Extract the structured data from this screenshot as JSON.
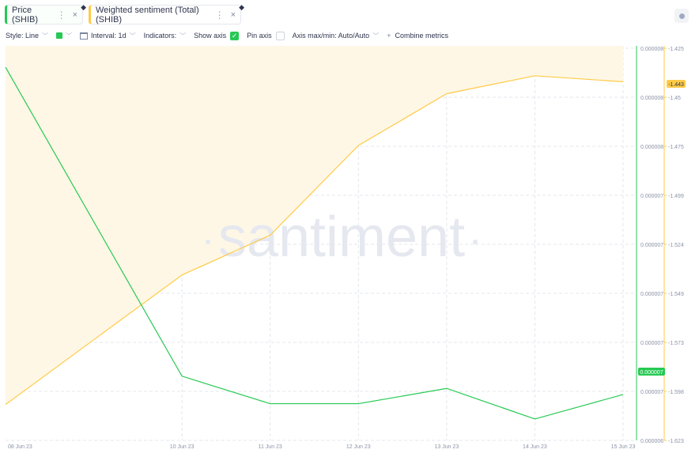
{
  "tabs": [
    {
      "label": "Price (SHIB)",
      "more_icon": "⋮",
      "close_icon": "×",
      "asset_icon": "ethereum-icon"
    },
    {
      "label": "Weighted sentiment (Total) (SHIB)",
      "more_icon": "⋮",
      "close_icon": "×",
      "asset_icon": "ethereum-icon"
    }
  ],
  "toolbar": {
    "style_label": "Style: Line",
    "interval_label": "Interval: 1d",
    "indicators_label": "Indicators:",
    "show_axis_label": "Show axis",
    "show_axis_checked": true,
    "pin_axis_label": "Pin axis",
    "pin_axis_checked": false,
    "axis_maxmin_label": "Axis max/min: Auto/Auto",
    "combine_label": "Combine metrics"
  },
  "colors": {
    "price": "#26c953",
    "sentiment": "#ffcb47",
    "area": "#fff7e6",
    "grid": "#e5e7ee",
    "axis_text": "#8a93a8"
  },
  "watermark": "santiment",
  "chart_data": {
    "type": "line",
    "categories": [
      "08 Jun 23",
      "10 Jun 23",
      "11 Jun 23",
      "12 Jun 23",
      "13 Jun 23",
      "14 Jun 23",
      "15 Jun 23"
    ],
    "x_positions": [
      0,
      2,
      3,
      4,
      5,
      6,
      7
    ],
    "price_axis_ticks": [
      "0.000008",
      "0.000008",
      "0.000008",
      "0.000007",
      "0.000007",
      "0.000007",
      "0.000007",
      "0.000007",
      "0.000006"
    ],
    "sentiment_axis_ticks": [
      "-1.425",
      "-1.45",
      "-1.475",
      "-1.499",
      "-1.524",
      "-1.549",
      "-1.573",
      "-1.598",
      "-1.623"
    ],
    "sentiment_ylim": [
      -1.623,
      -1.425
    ],
    "series": [
      {
        "name": "Price (SHIB)",
        "color": "#26c953",
        "values": [
          7.9e-06,
          6.89e-06,
          6.8e-06,
          6.8e-06,
          6.85e-06,
          6.75e-06,
          6.83e-06
        ]
      },
      {
        "name": "Weighted sentiment (Total) (SHIB)",
        "color": "#ffcb47",
        "values": [
          -1.605,
          -1.54,
          -1.52,
          -1.475,
          -1.449,
          -1.44,
          -1.443
        ]
      }
    ],
    "price_ylim": [
      6.68e-06,
      7.97e-06
    ],
    "last_price_label": "0.000007",
    "last_sentiment_label": "-1.443"
  }
}
